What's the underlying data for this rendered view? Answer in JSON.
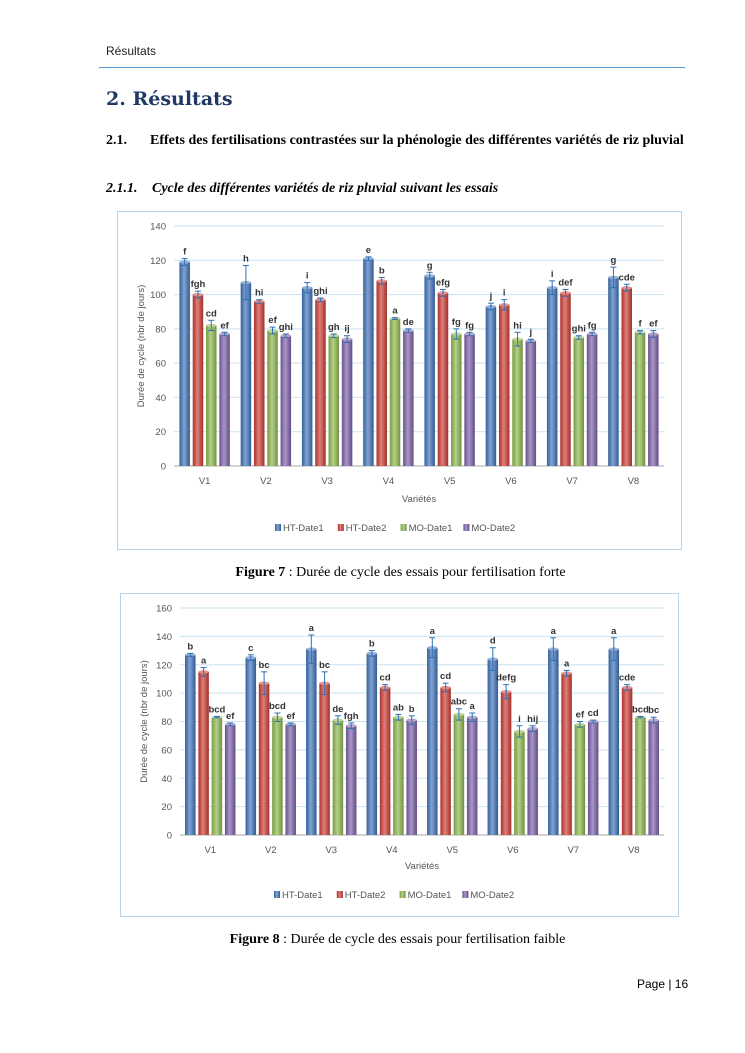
{
  "header": {
    "running_title": "Résultats"
  },
  "section": {
    "title": "2. Résultats",
    "subsection_number": "2.1.",
    "subsection_title": "Effets des fertilisations contrastées sur la phénologie des différentes variétés de riz pluvial",
    "subsubsection_number": "2.1.1.",
    "subsubsection_title": "Cycle des différentes variétés de riz pluvial suivant les essais"
  },
  "colors": {
    "HT-Date1": "#3d72b8",
    "HT-Date2": "#cc3a33",
    "MO-Date1": "#8cb64a",
    "MO-Date2": "#7b5fa8"
  },
  "chart_data": [
    {
      "type": "bar",
      "title": "",
      "xlabel": "Variétés",
      "ylabel": "Durée de cycle (nbr de jours)",
      "ylim": [
        0,
        140
      ],
      "yticks": [
        0,
        20,
        40,
        60,
        80,
        100,
        120,
        140
      ],
      "grid": true,
      "legend_position": "bottom",
      "categories": [
        "V1",
        "V2",
        "V3",
        "V4",
        "V5",
        "V6",
        "V7",
        "V8"
      ],
      "series": [
        {
          "name": "HT-Date1",
          "values": [
            119,
            107,
            104,
            121,
            111,
            93,
            104,
            110
          ],
          "errors": [
            2,
            10,
            3,
            1,
            2,
            2,
            4,
            6
          ],
          "labels": [
            "f",
            "h",
            "i",
            "e",
            "g",
            "j",
            "i",
            "g"
          ]
        },
        {
          "name": "HT-Date2",
          "values": [
            100,
            96,
            97,
            108,
            101,
            94,
            101,
            104
          ],
          "errors": [
            2,
            1,
            1,
            2,
            2,
            3,
            2,
            2
          ],
          "labels": [
            "fgh",
            "hi",
            "ghi",
            "b",
            "efg",
            "i",
            "def",
            "cde"
          ]
        },
        {
          "name": "MO-Date1",
          "values": [
            82,
            79,
            76,
            86,
            77,
            74,
            75,
            78
          ],
          "errors": [
            3,
            2,
            1,
            0.5,
            3,
            4,
            1,
            1
          ],
          "labels": [
            "cd",
            "ef",
            "gh",
            "a",
            "fg",
            "hi",
            "ghi",
            "f"
          ]
        },
        {
          "name": "MO-Date2",
          "values": [
            77,
            76,
            74,
            79,
            77,
            73,
            77,
            77
          ],
          "errors": [
            1,
            1,
            2,
            1,
            1,
            1,
            1,
            2
          ],
          "labels": [
            "ef",
            "ghi",
            "ij",
            "de",
            "fg",
            "j",
            "fg",
            "ef"
          ]
        }
      ]
    },
    {
      "type": "bar",
      "title": "",
      "xlabel": "Variétés",
      "ylabel": "Durée de cycle (nbr de jours)",
      "ylim": [
        0,
        160
      ],
      "yticks": [
        0,
        20,
        40,
        60,
        80,
        100,
        120,
        140,
        160
      ],
      "grid": true,
      "legend_position": "bottom",
      "categories": [
        "V1",
        "V2",
        "V3",
        "V4",
        "V5",
        "V6",
        "V7",
        "V8"
      ],
      "series": [
        {
          "name": "HT-Date1",
          "values": [
            127,
            125,
            131,
            128,
            132,
            124,
            131,
            131
          ],
          "errors": [
            1,
            2,
            10,
            2,
            7,
            8,
            8,
            8
          ],
          "labels": [
            "b",
            "c",
            "a",
            "b",
            "a",
            "d",
            "a",
            "a"
          ]
        },
        {
          "name": "HT-Date2",
          "values": [
            115,
            107,
            107,
            104,
            104,
            101,
            114,
            104
          ],
          "errors": [
            3,
            8,
            8,
            2,
            3,
            5,
            2,
            2
          ],
          "labels": [
            "a",
            "bc",
            "bc",
            "cd",
            "cd",
            "defg",
            "a",
            "cde"
          ]
        },
        {
          "name": "MO-Date1",
          "values": [
            83,
            83,
            81,
            83,
            85,
            73,
            78,
            83
          ],
          "errors": [
            0.5,
            3,
            3,
            2,
            4,
            4,
            2,
            0.5
          ],
          "labels": [
            "bcd",
            "bcd",
            "de",
            "ab",
            "abc",
            "i",
            "ef",
            "bcd"
          ]
        },
        {
          "name": "MO-Date2",
          "values": [
            78,
            78,
            77,
            81,
            83,
            75,
            80,
            81
          ],
          "errors": [
            1,
            1,
            2,
            3,
            3,
            2,
            1,
            2
          ],
          "labels": [
            "ef",
            "ef",
            "fgh",
            "b",
            "a",
            "hij",
            "cd",
            "bc"
          ]
        }
      ]
    }
  ],
  "figures": [
    {
      "label": "Figure 7",
      "text": " : Durée de cycle des essais pour fertilisation forte"
    },
    {
      "label": "Figure 8",
      "text": " : Durée de cycle des essais pour fertilisation faible"
    }
  ],
  "footer": {
    "page": "Page | 16"
  }
}
